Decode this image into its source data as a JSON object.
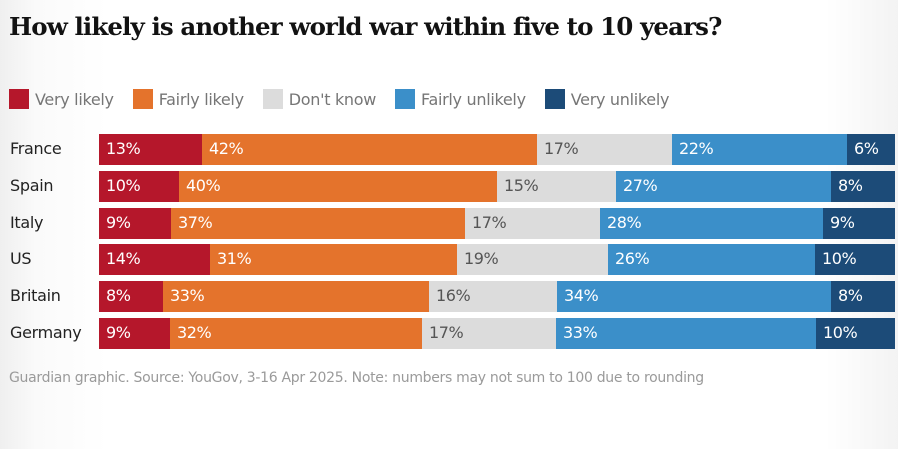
{
  "chart_data": {
    "type": "bar",
    "orientation": "horizontal",
    "stacked": true,
    "normalized": true,
    "title": "How likely is another world war within five to 10 years?",
    "xlabel": "",
    "ylabel": "",
    "legend_position": "top-left",
    "grid": false,
    "categories": [
      "France",
      "Spain",
      "Italy",
      "US",
      "Britain",
      "Germany"
    ],
    "series": [
      {
        "name": "Very likely",
        "color": "#b5172b",
        "label_color": "#ffffff",
        "values": [
          13,
          10,
          9,
          14,
          8,
          9
        ]
      },
      {
        "name": "Fairly likely",
        "color": "#e4732c",
        "label_color": "#ffffff",
        "values": [
          42,
          40,
          37,
          31,
          33,
          32
        ]
      },
      {
        "name": "Don't know",
        "color": "#dcdcdc",
        "label_color": "#555555",
        "values": [
          17,
          15,
          17,
          19,
          16,
          17
        ]
      },
      {
        "name": "Fairly unlikely",
        "color": "#3b8fc9",
        "label_color": "#ffffff",
        "values": [
          22,
          27,
          28,
          26,
          34,
          33
        ]
      },
      {
        "name": "Very unlikely",
        "color": "#1c4b78",
        "label_color": "#ffffff",
        "values": [
          6,
          8,
          9,
          10,
          8,
          10
        ]
      }
    ],
    "value_suffix": "%",
    "footnote": "Guardian graphic. Source: YouGov, 3-16 Apr 2025. Note: numbers may not sum to 100 due to rounding"
  }
}
